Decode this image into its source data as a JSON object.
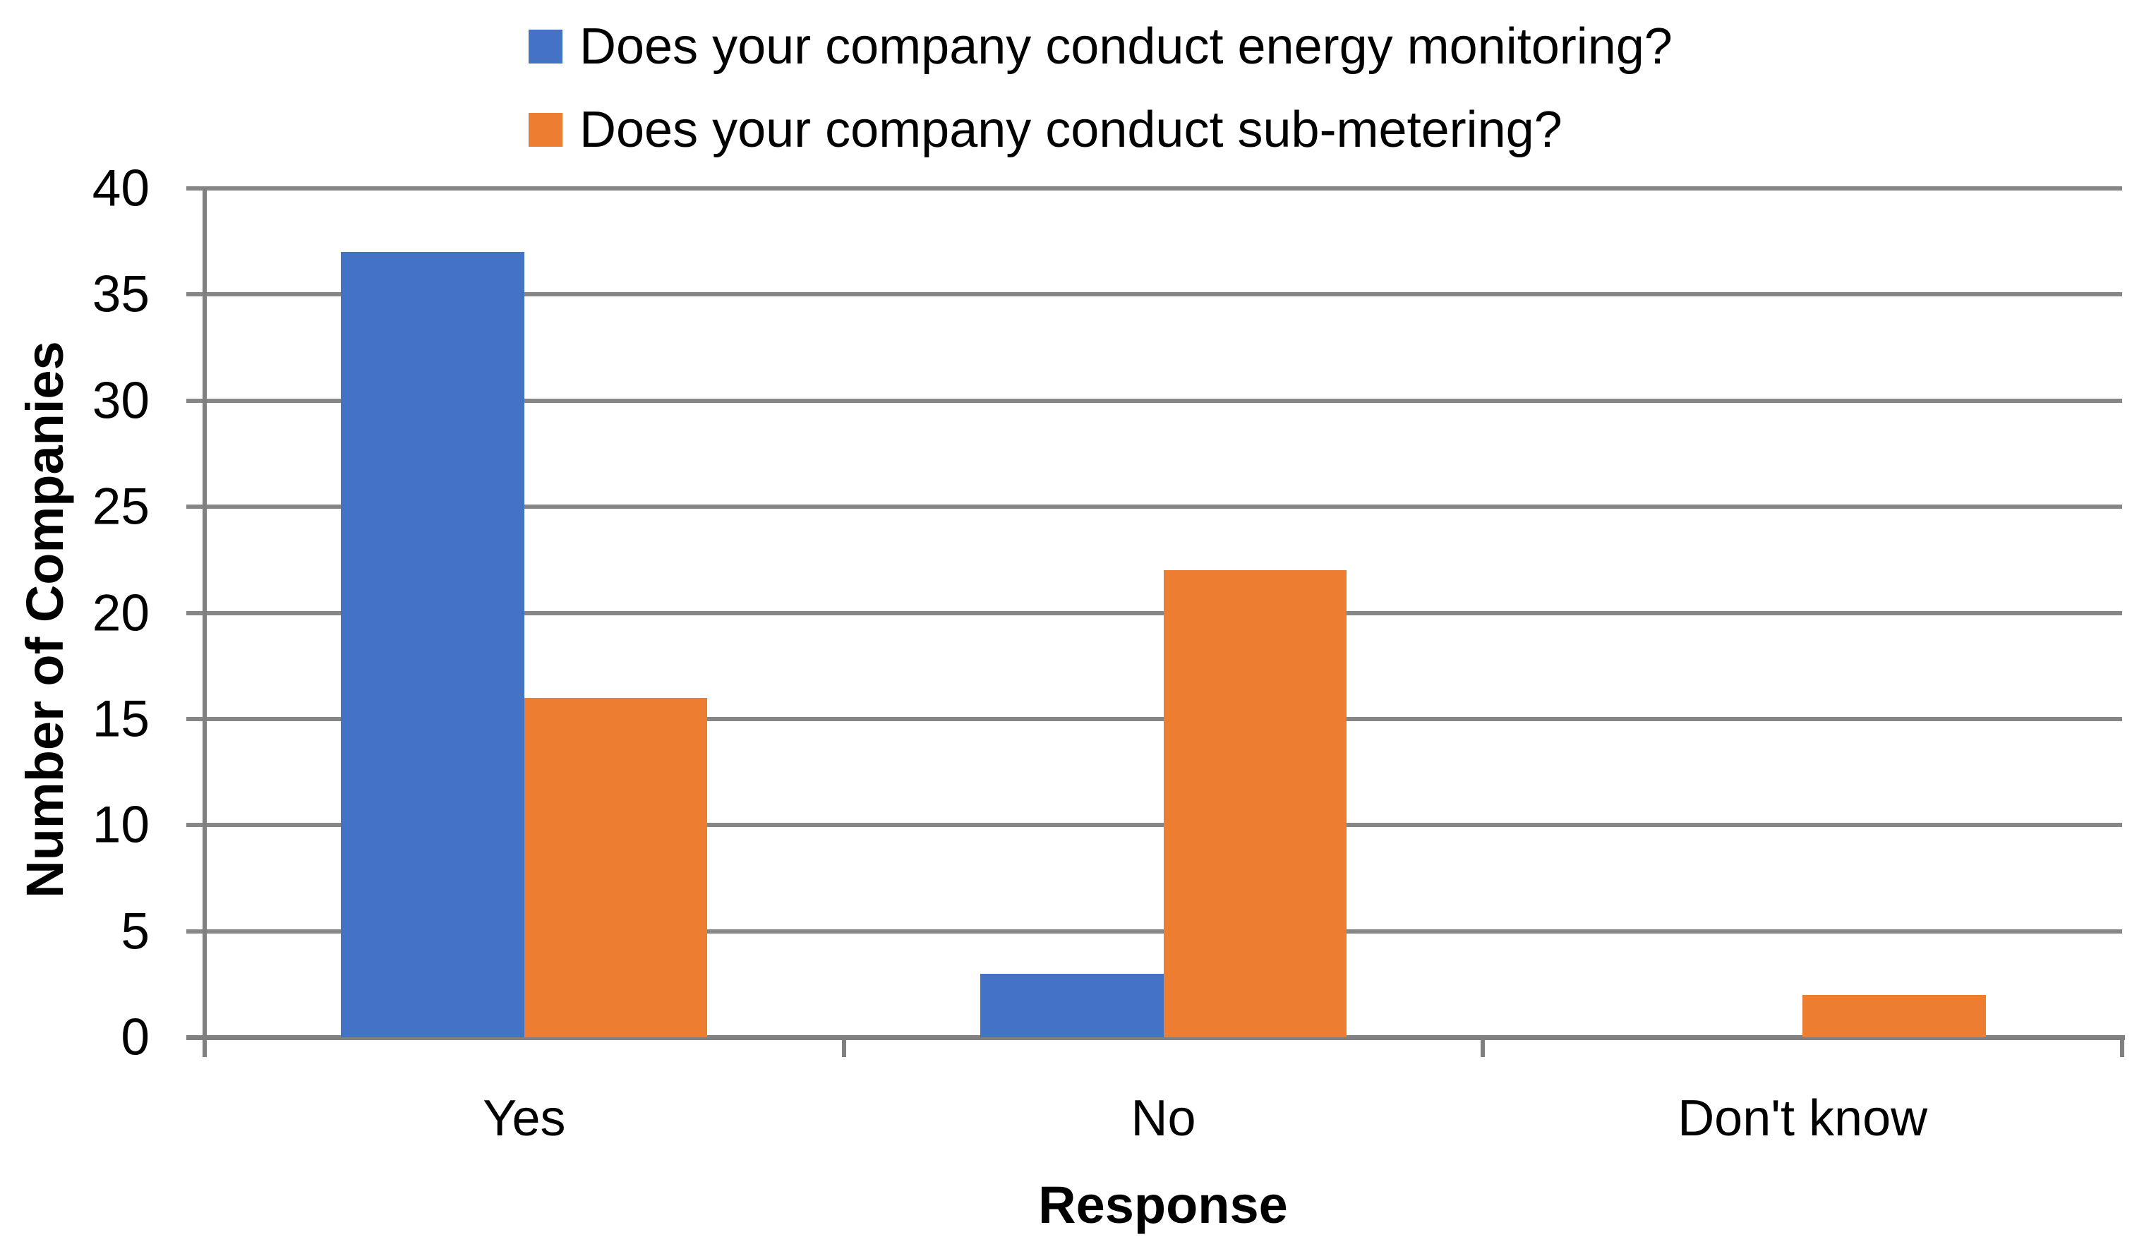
{
  "chart_data": {
    "type": "bar",
    "categories": [
      "Yes",
      "No",
      "Don't know"
    ],
    "series": [
      {
        "name": "Does your company conduct energy monitoring?",
        "color": "#4472C4",
        "values": [
          37,
          3,
          0
        ]
      },
      {
        "name": "Does your company conduct sub-metering?",
        "color": "#ED7D31",
        "values": [
          16,
          22,
          2
        ]
      }
    ],
    "xlabel": "Response",
    "ylabel": "Number of Companies",
    "ylim": [
      0,
      40
    ],
    "ytick_step": 5,
    "yticks": [
      0,
      5,
      10,
      15,
      20,
      25,
      30,
      35,
      40
    ],
    "grid": true,
    "legend_position": "top-left",
    "gridline_color": "#868686",
    "axis_color": "#808080"
  }
}
